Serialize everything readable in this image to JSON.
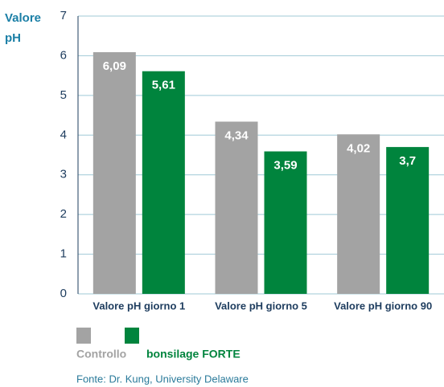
{
  "chart_data": {
    "type": "bar",
    "ylabel": "Valore pH",
    "categories": [
      "Valore pH giorno 1",
      "Valore pH giorno 5",
      "Valore pH giorno 90"
    ],
    "series": [
      {
        "name": "Controllo",
        "color": "#a3a3a3",
        "values": [
          6.09,
          4.34,
          4.02
        ],
        "value_labels": [
          "6,09",
          "4,34",
          "4,02"
        ]
      },
      {
        "name": "bonsilage FORTE",
        "color": "#00843d",
        "values": [
          5.61,
          3.59,
          3.7
        ],
        "value_labels": [
          "5,61",
          "3,59",
          "3,7"
        ]
      }
    ],
    "ylim": [
      0,
      7
    ],
    "yticks": [
      0,
      1,
      2,
      3,
      4,
      5,
      6,
      7
    ],
    "grid": true,
    "source": "Fonte: Dr. Kung, University Delaware"
  }
}
